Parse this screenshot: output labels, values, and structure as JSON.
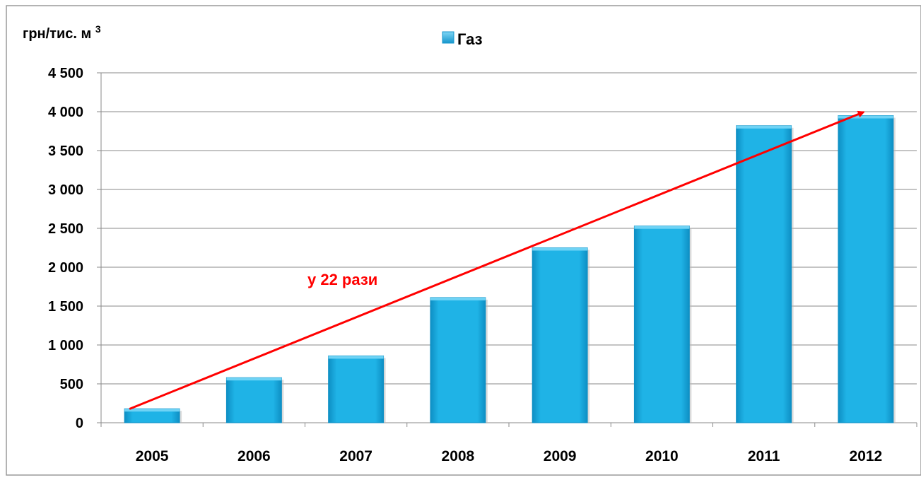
{
  "chart_data": {
    "type": "bar",
    "ylabel": "грн/тис. м³",
    "categories": [
      "2005",
      "2006",
      "2007",
      "2008",
      "2009",
      "2010",
      "2011",
      "2012"
    ],
    "series": [
      {
        "name": "Газ",
        "values": [
          180,
          580,
          860,
          1610,
          2250,
          2530,
          3820,
          3950
        ]
      }
    ],
    "yticks": [
      0,
      500,
      1000,
      1500,
      2000,
      2500,
      3000,
      3500,
      4000,
      4500
    ],
    "ytick_labels": [
      "0",
      "500",
      "1 000",
      "1 500",
      "2 000",
      "2 500",
      "3 000",
      "3 500",
      "4 000",
      "4 500"
    ],
    "ylim": [
      0,
      4500
    ],
    "grid": true,
    "legend_position": "top",
    "bar_color": "#1fb3e6",
    "annotation": {
      "text": "у 22 рази",
      "color": "#ff0000",
      "arrow_from": {
        "category": "2005",
        "value": 250
      },
      "arrow_to": {
        "category": "2012",
        "value": 3950
      }
    }
  }
}
